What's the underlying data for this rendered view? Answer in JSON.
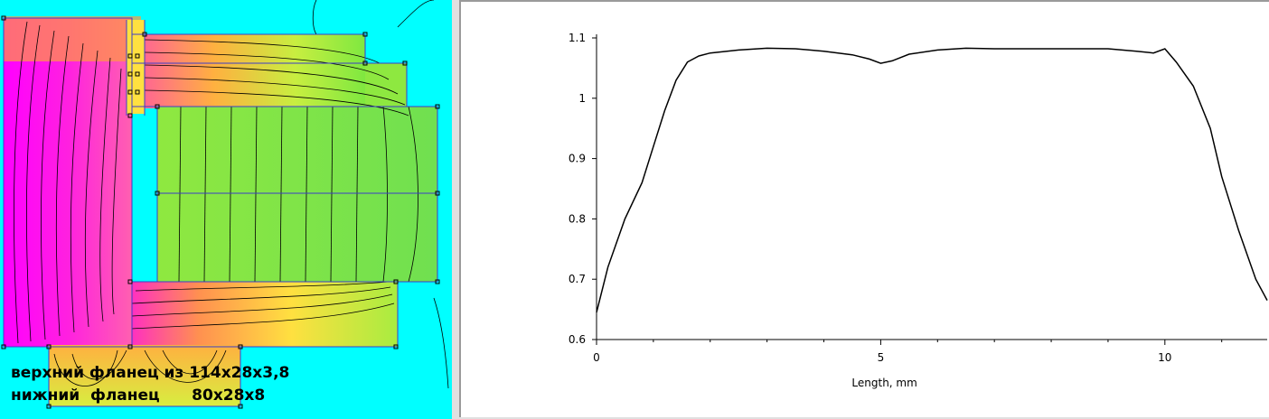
{
  "chart_data": {
    "type": "line",
    "xlabel": "Length, mm",
    "ylabel": "",
    "xlim": [
      0,
      11.8
    ],
    "ylim": [
      0.6,
      1.1
    ],
    "x_ticks": [
      0,
      5,
      10
    ],
    "y_ticks": [
      0.6,
      0.7,
      0.8,
      0.9,
      1.0,
      1.1
    ],
    "x_tick_labels": [
      "0",
      "5",
      "10"
    ],
    "y_tick_labels": [
      "0.6",
      "0.7",
      "0.8",
      "0.9",
      "1",
      "1.1"
    ],
    "grid": false,
    "series": [
      {
        "x": [
          0,
          0.2,
          0.5,
          0.8,
          1.0,
          1.2,
          1.4,
          1.6,
          1.8,
          2.0,
          2.5,
          3.0,
          3.5,
          4.0,
          4.5,
          4.8,
          5.0,
          5.2,
          5.5,
          6.0,
          6.5,
          7.0,
          8.0,
          9.0,
          9.5,
          9.8,
          10.0,
          10.2,
          10.5,
          10.8,
          11.0,
          11.3,
          11.6,
          11.8
        ],
        "y": [
          0.645,
          0.72,
          0.8,
          0.86,
          0.92,
          0.98,
          1.03,
          1.06,
          1.07,
          1.075,
          1.08,
          1.083,
          1.082,
          1.078,
          1.072,
          1.065,
          1.058,
          1.062,
          1.073,
          1.08,
          1.083,
          1.082,
          1.082,
          1.082,
          1.078,
          1.075,
          1.082,
          1.06,
          1.02,
          0.95,
          0.87,
          0.78,
          0.7,
          0.665
        ]
      }
    ]
  },
  "captions": {
    "line1": "верхний фланец из 114x28x3,8",
    "line2": "нижний  фланец      80x28x8"
  },
  "colors": {
    "background": "#00ffff",
    "high_field": "#ff00ff",
    "mid_field": "#ffd23c",
    "low_field": "#7fe840",
    "mesh_line": "#3c3cc8",
    "flux_line": "#000000"
  }
}
